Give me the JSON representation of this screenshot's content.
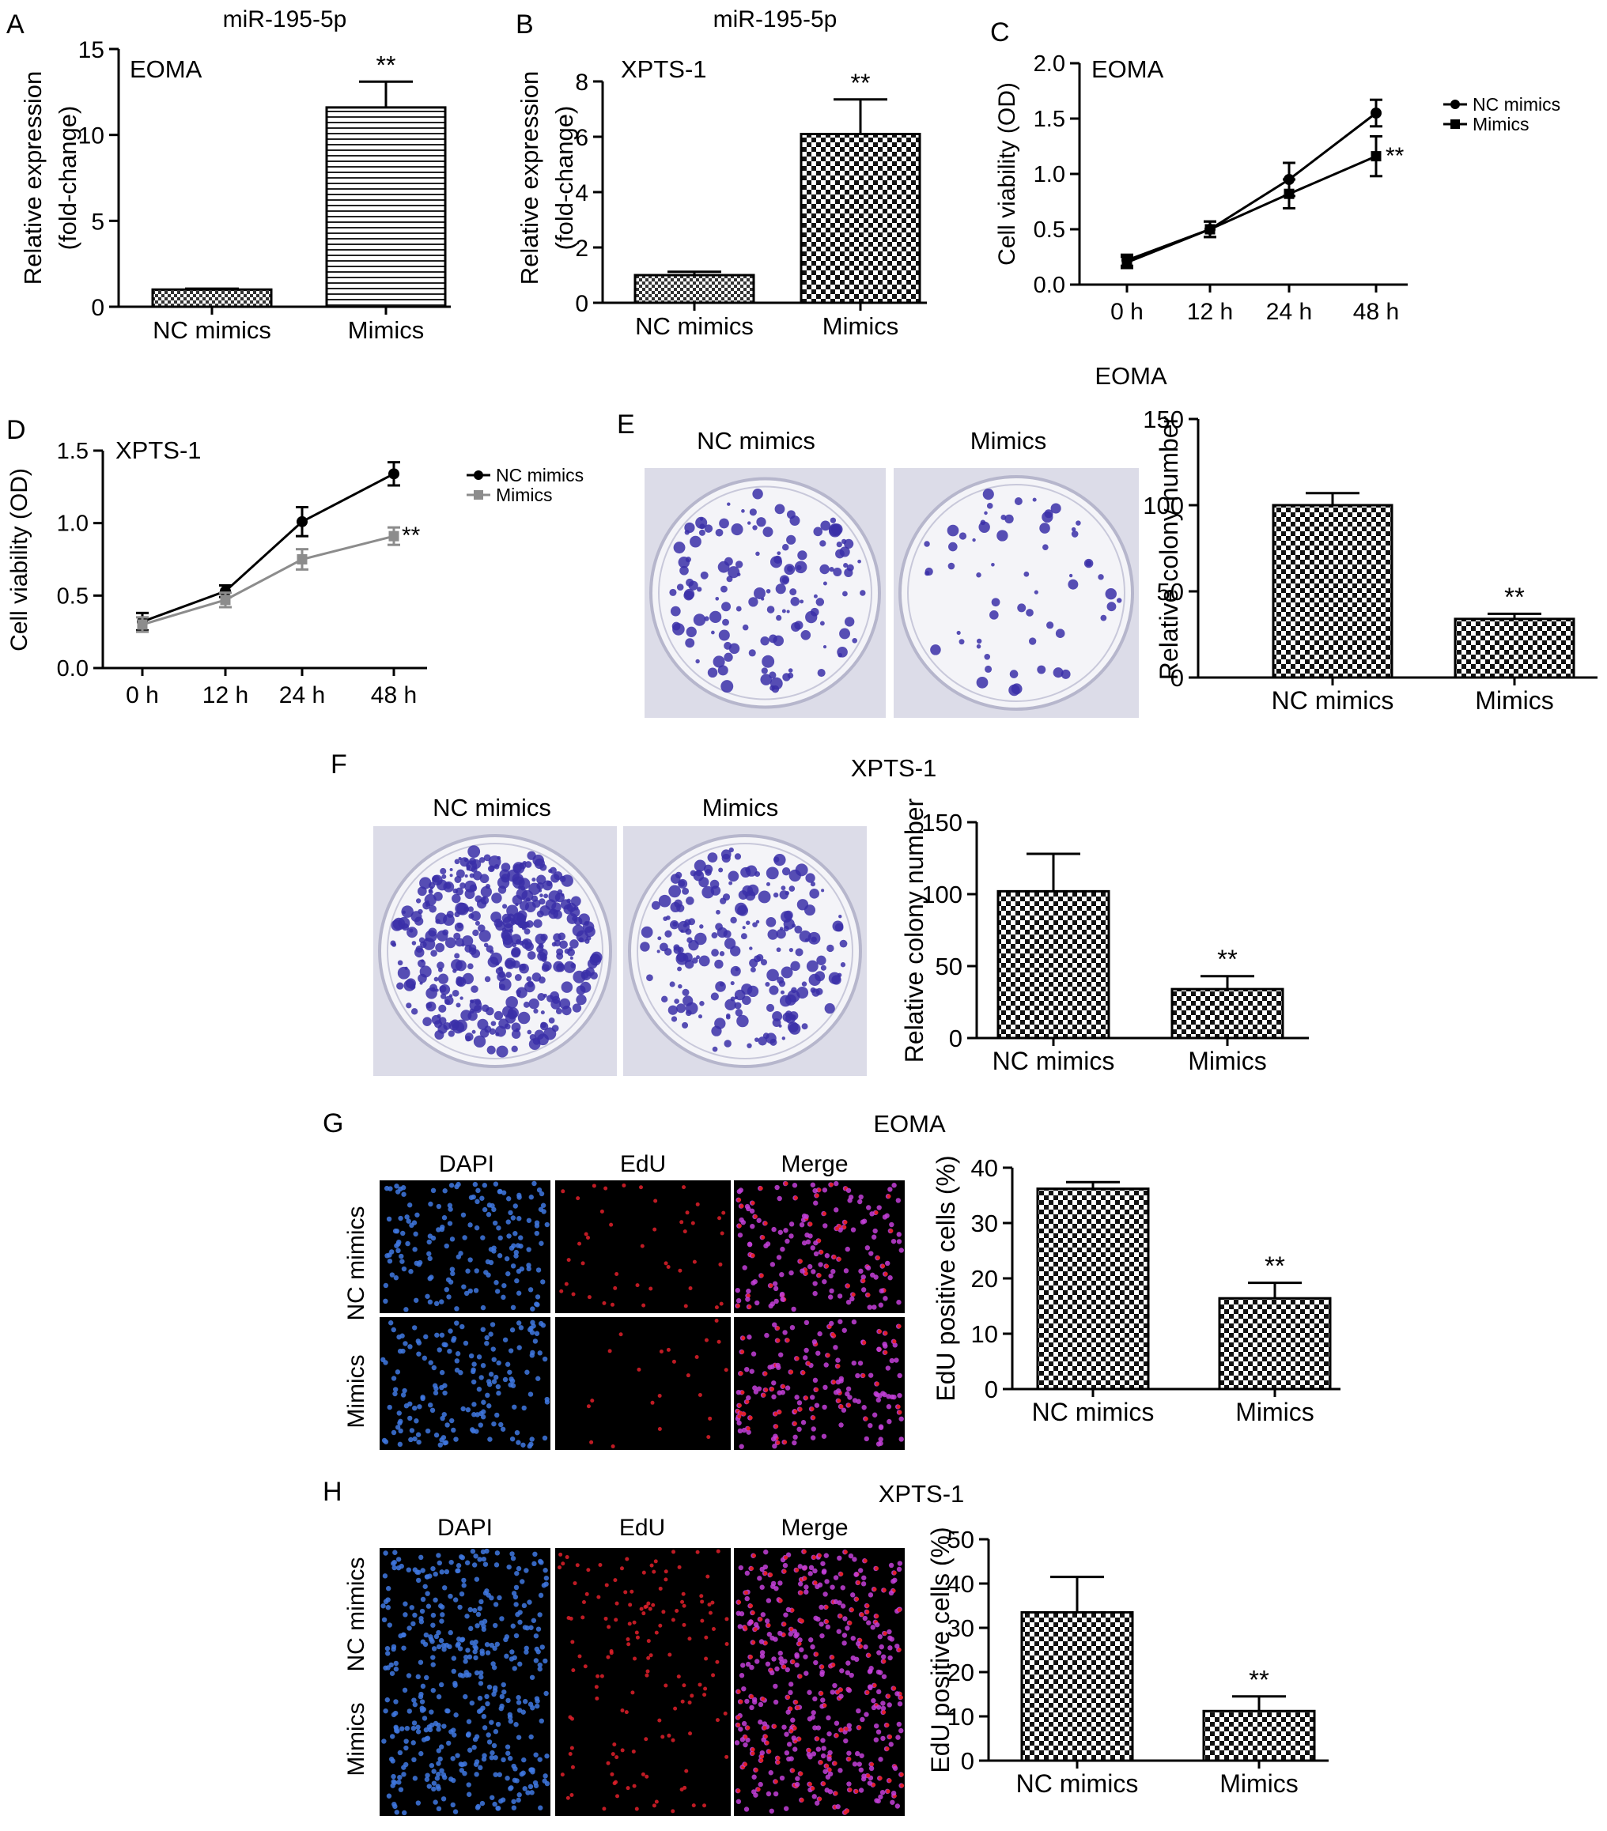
{
  "panels": {
    "A": {
      "letter": "A"
    },
    "B": {
      "letter": "B"
    },
    "C": {
      "letter": "C"
    },
    "D": {
      "letter": "D"
    },
    "E": {
      "letter": "E",
      "title": "EOMA",
      "photo_labels": [
        "NC mimics",
        "Mimics"
      ]
    },
    "F": {
      "letter": "F",
      "title": "XPTS-1",
      "photo_labels": [
        "NC mimics",
        "Mimics"
      ]
    },
    "G": {
      "letter": "G",
      "title": "EOMA",
      "col_labels": [
        "DAPI",
        "EdU",
        "Merge"
      ],
      "row_labels": [
        "NC mimics",
        "Mimics"
      ]
    },
    "H": {
      "letter": "H",
      "title": "XPTS-1",
      "col_labels": [
        "DAPI",
        "EdU",
        "Merge"
      ],
      "row_labels": [
        "NC mimics",
        "Mimics"
      ]
    }
  },
  "colors": {
    "dish_bg": "#dcdce8",
    "colony": "#3a2fa8",
    "fluor_bg": "#000000",
    "dapi": "#3f78e0",
    "edu": "#e0202a",
    "merge": "#c33fd8",
    "series_black": "#000000",
    "series_gray": "#8c8c8c"
  },
  "chart_data": [
    {
      "id": "A",
      "type": "bar",
      "title": "miR-195-5p",
      "annotation": "EOMA",
      "categories": [
        "NC mimics",
        "Mimics"
      ],
      "values": [
        1.0,
        11.6
      ],
      "errors": [
        0.05,
        1.5
      ],
      "significance": [
        "",
        "**"
      ],
      "ylabel": [
        "Relative expression",
        "(fold-change)"
      ],
      "ylim": [
        0,
        15
      ],
      "yticks": [
        0,
        5,
        10,
        15
      ],
      "patterns": [
        "check-fine",
        "horizontal"
      ]
    },
    {
      "id": "B",
      "type": "bar",
      "title": "miR-195-5p",
      "annotation": "XPTS-1",
      "categories": [
        "NC mimics",
        "Mimics"
      ],
      "values": [
        1.0,
        6.1
      ],
      "errors": [
        0.12,
        1.25
      ],
      "significance": [
        "",
        "**"
      ],
      "ylabel": [
        "Relative expression",
        "(fold-change)"
      ],
      "ylim": [
        0,
        8
      ],
      "yticks": [
        0,
        2,
        4,
        6,
        8
      ],
      "patterns": [
        "check-fine",
        "check"
      ]
    },
    {
      "id": "C",
      "type": "line",
      "annotation": "EOMA",
      "x": [
        "0 h",
        "12 h",
        "24 h",
        "48 h"
      ],
      "ylabel": "Cell viability (OD)",
      "ylim": [
        0,
        2.0
      ],
      "yticks": [
        0.0,
        0.5,
        1.0,
        1.5,
        2.0
      ],
      "legend": "right",
      "significance": "**",
      "series": [
        {
          "name": "NC mimics",
          "marker": "circle",
          "values": [
            0.22,
            0.5,
            0.95,
            1.55
          ],
          "errors": [
            0.05,
            0.07,
            0.15,
            0.12
          ]
        },
        {
          "name": "Mimics",
          "marker": "square",
          "values": [
            0.2,
            0.5,
            0.82,
            1.16
          ],
          "errors": [
            0.05,
            0.07,
            0.13,
            0.18
          ]
        }
      ]
    },
    {
      "id": "D",
      "type": "line",
      "annotation": "XPTS-1",
      "x": [
        "0 h",
        "12 h",
        "24 h",
        "48 h"
      ],
      "ylabel": "Cell viability (OD)",
      "ylim": [
        0,
        1.5
      ],
      "yticks": [
        0.0,
        0.5,
        1.0,
        1.5
      ],
      "legend": "right",
      "significance": "**",
      "series": [
        {
          "name": "NC mimics",
          "marker": "circle",
          "values": [
            0.32,
            0.53,
            1.01,
            1.34
          ],
          "errors": [
            0.06,
            0.04,
            0.1,
            0.08
          ]
        },
        {
          "name": "Mimics",
          "marker": "square",
          "values": [
            0.3,
            0.47,
            0.75,
            0.91
          ],
          "errors": [
            0.05,
            0.05,
            0.07,
            0.06
          ]
        }
      ]
    },
    {
      "id": "E",
      "type": "bar",
      "categories": [
        "NC mimics",
        "Mimics"
      ],
      "values": [
        100,
        34
      ],
      "errors": [
        7,
        3
      ],
      "significance": [
        "",
        "**"
      ],
      "ylabel": [
        "Relative colony number"
      ],
      "ylim": [
        0,
        150
      ],
      "yticks": [
        0,
        50,
        100,
        150
      ],
      "patterns": [
        "check",
        "check"
      ]
    },
    {
      "id": "F",
      "type": "bar",
      "categories": [
        "NC mimics",
        "Mimics"
      ],
      "values": [
        102,
        34
      ],
      "errors": [
        26,
        9
      ],
      "significance": [
        "",
        "**"
      ],
      "ylabel": [
        "Relative colony number"
      ],
      "ylim": [
        0,
        150
      ],
      "yticks": [
        0,
        50,
        100,
        150
      ],
      "patterns": [
        "check",
        "check"
      ]
    },
    {
      "id": "G",
      "type": "bar",
      "categories": [
        "NC mimics",
        "Mimics"
      ],
      "values": [
        36.2,
        16.4
      ],
      "errors": [
        1.2,
        2.8
      ],
      "significance": [
        "",
        "**"
      ],
      "ylabel": [
        "EdU positive cells (%)"
      ],
      "ylim": [
        0,
        40
      ],
      "yticks": [
        0,
        10,
        20,
        30,
        40
      ],
      "patterns": [
        "check",
        "check"
      ]
    },
    {
      "id": "H",
      "type": "bar",
      "categories": [
        "NC mimics",
        "Mimics"
      ],
      "values": [
        33.5,
        11.2
      ],
      "errors": [
        8.0,
        3.3
      ],
      "significance": [
        "",
        "**"
      ],
      "ylabel": [
        "EdU positive cells (%)"
      ],
      "ylim": [
        0,
        50
      ],
      "yticks": [
        0,
        10,
        20,
        30,
        40,
        50
      ],
      "patterns": [
        "check",
        "check"
      ]
    }
  ]
}
